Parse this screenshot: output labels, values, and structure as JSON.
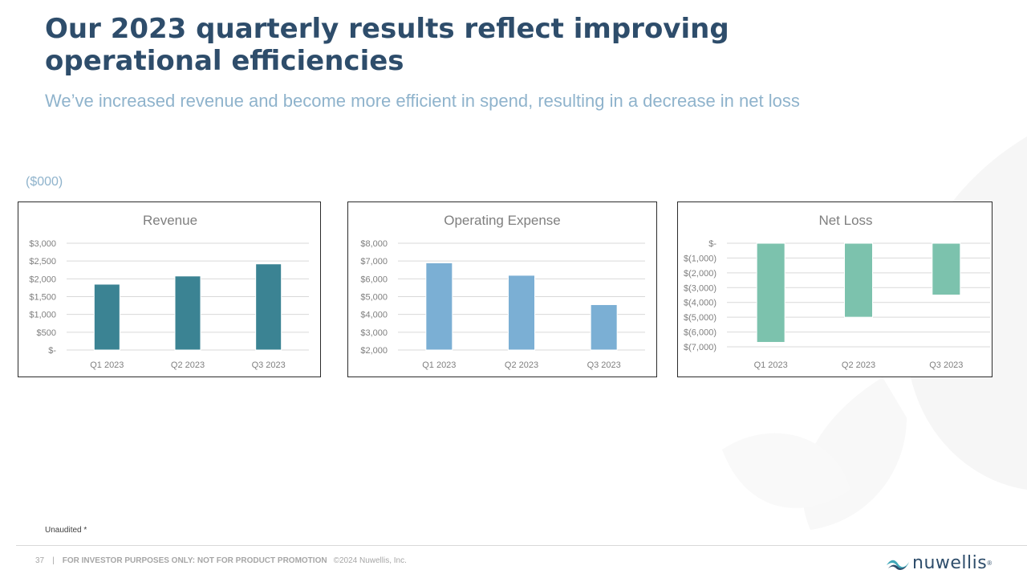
{
  "slide": {
    "title": "Our 2023 quarterly results reflect improving operational efficiencies",
    "subtitle": "We’ve increased revenue and become more efficient in spend, resulting in a decrease in net loss",
    "units": "($000)",
    "footnote": "Unaudited *"
  },
  "footer": {
    "page_number": "37",
    "separator": "|",
    "disclaimer": "FOR INVESTOR PURPOSES ONLY: NOT FOR PRODUCT PROMOTION",
    "copyright": "©2024 Nuwellis, Inc.",
    "logo_text": "nuwellis",
    "logo_mark": "®"
  },
  "colors": {
    "title": "#2e4d6b",
    "subtitle": "#8fb3cc",
    "revenue_bar": "#3b8393",
    "opex_bar": "#7bafd4",
    "netloss_bar": "#7cc2ad",
    "gridline": "#d9d9d9",
    "axis_text": "#7f7f7f"
  },
  "chart_data": [
    {
      "id": "revenue",
      "type": "bar",
      "title": "Revenue",
      "categories": [
        "Q1 2023",
        "Q2 2023",
        "Q3 2023"
      ],
      "values": [
        1850,
        2080,
        2420
      ],
      "ylim": [
        0,
        3000
      ],
      "yticks": [
        0,
        500,
        1000,
        1500,
        2000,
        2500,
        3000
      ],
      "ytick_labels": [
        "$-",
        "$500",
        "$1,000",
        "$1,500",
        "$2,000",
        "$2,500",
        "$3,000"
      ],
      "grid": true,
      "color": "#3b8393"
    },
    {
      "id": "opex",
      "type": "bar",
      "title": "Operating Expense",
      "categories": [
        "Q1 2023",
        "Q2 2023",
        "Q3 2023"
      ],
      "values": [
        6900,
        6200,
        4550
      ],
      "ylim": [
        2000,
        8000
      ],
      "yticks": [
        2000,
        3000,
        4000,
        5000,
        6000,
        7000,
        8000
      ],
      "ytick_labels": [
        "$2,000",
        "$3,000",
        "$4,000",
        "$5,000",
        "$6,000",
        "$7,000",
        "$8,000"
      ],
      "grid": true,
      "color": "#7bafd4"
    },
    {
      "id": "netloss",
      "type": "bar",
      "title": "Net Loss",
      "categories": [
        "Q1 2023",
        "Q2 2023",
        "Q3 2023"
      ],
      "values": [
        -6700,
        -5000,
        -3500
      ],
      "ylim": [
        -7000,
        0
      ],
      "yticks": [
        0,
        -1000,
        -2000,
        -3000,
        -4000,
        -5000,
        -6000,
        -7000
      ],
      "ytick_labels": [
        "$-",
        "$(1,000)",
        "$(2,000)",
        "$(3,000)",
        "$(4,000)",
        "$(5,000)",
        "$(6,000)",
        "$(7,000)"
      ],
      "grid": true,
      "color": "#7cc2ad"
    }
  ]
}
